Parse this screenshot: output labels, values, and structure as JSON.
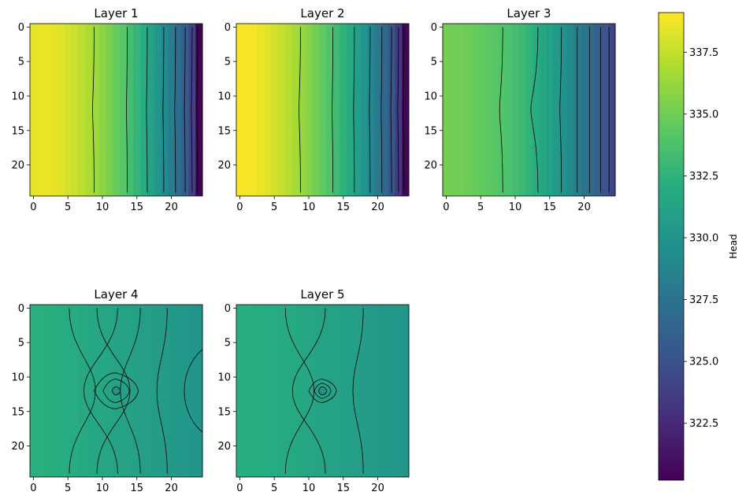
{
  "chart_data": {
    "type": "heatmap",
    "colormap": "viridis",
    "value_range": [
      320.2,
      339.1
    ],
    "panels": [
      {
        "title": "Layer 1",
        "xticks": [
          "0",
          "5",
          "10",
          "15",
          "20"
        ],
        "yticks": [
          "0",
          "5",
          "10",
          "15",
          "20"
        ],
        "column_values": [
          338.5,
          338.6,
          338.6,
          338.5,
          338.3,
          338.0,
          337.7,
          337.3,
          336.9,
          336.4,
          335.9,
          335.3,
          334.7,
          334.1,
          333.4,
          332.7,
          331.9,
          331.1,
          330.2,
          329.2,
          328.2,
          327.0,
          325.7,
          324.0,
          320.3
        ],
        "contour_x": [
          8.8,
          13.6,
          16.5,
          18.9,
          20.6,
          22.0,
          23.0,
          23.8
        ]
      },
      {
        "title": "Layer 2",
        "xticks": [
          "0",
          "5",
          "10",
          "15",
          "20"
        ],
        "yticks": [
          "0",
          "5",
          "10",
          "15",
          "20"
        ],
        "column_values": [
          339.0,
          338.9,
          338.8,
          338.6,
          338.3,
          338.0,
          337.6,
          337.2,
          336.7,
          336.2,
          335.7,
          335.1,
          334.5,
          333.9,
          333.2,
          332.5,
          331.7,
          330.9,
          330.0,
          329.0,
          327.9,
          326.7,
          325.3,
          323.5,
          320.5
        ],
        "contour_x": [
          8.8,
          13.5,
          16.6,
          18.9,
          20.6,
          22.0,
          23.0,
          23.8
        ]
      },
      {
        "title": "Layer 3",
        "xticks": [
          "0",
          "5",
          "10",
          "15",
          "20"
        ],
        "yticks": [
          "0",
          "5",
          "10",
          "15",
          "20"
        ],
        "column_values": [
          335.1,
          335.1,
          335.0,
          334.9,
          334.8,
          334.6,
          334.4,
          334.2,
          334.0,
          333.7,
          333.4,
          333.0,
          332.6,
          332.1,
          331.6,
          331.0,
          330.4,
          329.8,
          329.1,
          328.4,
          327.7,
          326.9,
          326.1,
          325.2,
          324.3
        ],
        "contour_x": [
          8.2,
          13.3,
          16.7,
          19.0,
          20.8,
          22.4,
          23.6
        ]
      },
      {
        "title": "Layer 4",
        "xticks": [
          "0",
          "5",
          "10",
          "15",
          "20"
        ],
        "yticks": [
          "0",
          "5",
          "10",
          "15",
          "20"
        ],
        "column_values": [
          332.3,
          332.3,
          332.2,
          332.2,
          332.1,
          332.0,
          331.9,
          331.8,
          331.7,
          331.6,
          331.5,
          331.4,
          331.3,
          331.2,
          331.1,
          331.0,
          330.9,
          330.8,
          330.7,
          330.6,
          330.5,
          330.4,
          330.3,
          330.2,
          330.1
        ],
        "contour_x": [
          5.2,
          9.2,
          12.2,
          15.5,
          19.4
        ],
        "well": [
          12,
          12
        ]
      },
      {
        "title": "Layer 5",
        "xticks": [
          "0",
          "5",
          "10",
          "15",
          "20"
        ],
        "yticks": [
          "0",
          "5",
          "10",
          "15",
          "20"
        ],
        "column_values": [
          332.2,
          332.2,
          332.1,
          332.1,
          332.0,
          331.9,
          331.8,
          331.7,
          331.7,
          331.6,
          331.5,
          331.4,
          331.3,
          331.2,
          331.1,
          331.0,
          330.9,
          330.8,
          330.7,
          330.6,
          330.5,
          330.5,
          330.4,
          330.3,
          330.2
        ],
        "contour_x": [
          6.6,
          12.4,
          17.9
        ],
        "well": [
          12,
          12
        ]
      }
    ],
    "colorbar": {
      "label": "Head",
      "ticks": [
        "322.5",
        "325.0",
        "327.5",
        "330.0",
        "332.5",
        "335.0",
        "337.5"
      ],
      "tick_values": [
        322.5,
        325.0,
        327.5,
        330.0,
        332.5,
        335.0,
        337.5
      ]
    }
  }
}
